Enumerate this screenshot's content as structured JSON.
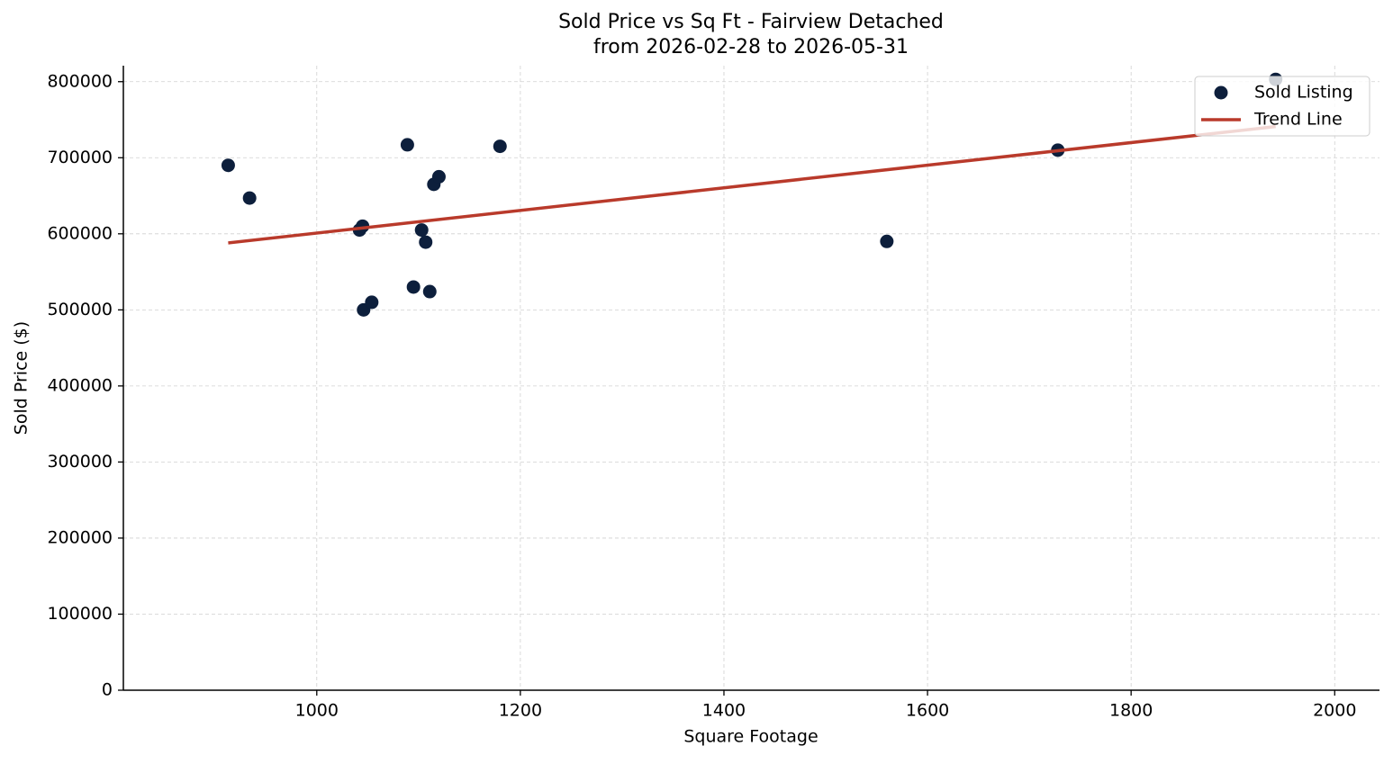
{
  "chart_data": {
    "type": "scatter",
    "title": "Sold Price vs Sq Ft - Fairview Detached",
    "subtitle": "from 2026-02-28 to 2026-05-31",
    "x_label": "Square Footage",
    "y_label": "Sold Price ($)",
    "xlim": [
      810,
      2044
    ],
    "xticks": [
      1000,
      1200,
      1400,
      1600,
      1800,
      2000
    ],
    "ylim": [
      0,
      821000
    ],
    "yticks": [
      0,
      100000,
      200000,
      300000,
      400000,
      500000,
      600000,
      700000,
      800000
    ],
    "grid": true,
    "legend": "upper right",
    "series": [
      {
        "name": "Sold Listing",
        "color": "#0d1f3c",
        "type": "scatter",
        "x": [
          913,
          934,
          1042,
          1045,
          1046,
          1054,
          1089,
          1095,
          1103,
          1107,
          1111,
          1115,
          1120,
          1180,
          1560,
          1728,
          1942
        ],
        "values": [
          690000,
          647000,
          605000,
          610000,
          500000,
          510000,
          717000,
          530000,
          605000,
          589000,
          524000,
          665000,
          675000,
          715000,
          590000,
          710000,
          803000
        ]
      },
      {
        "name": "Trend Line",
        "color": "#b93a2b",
        "type": "line",
        "x": [
          913,
          1942
        ],
        "values": [
          588000,
          741000
        ]
      }
    ]
  }
}
